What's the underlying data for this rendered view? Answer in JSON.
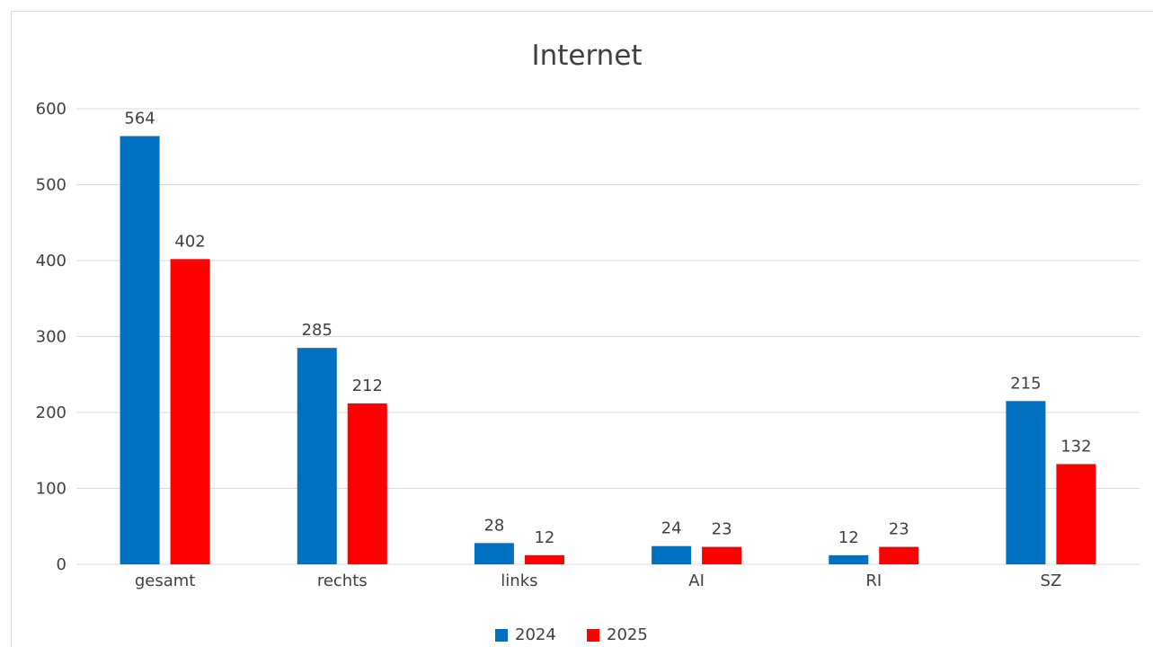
{
  "colors": {
    "series_2024": "#0070c0",
    "series_2025": "#ff0000",
    "text": "#404040",
    "grid": "#d9d9d9"
  },
  "chart_data": {
    "type": "bar",
    "title": "Internet",
    "xlabel": "",
    "ylabel": "",
    "categories": [
      "gesamt",
      "rechts",
      "links",
      "AI",
      "RI",
      "SZ"
    ],
    "series": [
      {
        "name": "2024",
        "values": [
          564,
          285,
          28,
          24,
          12,
          215
        ]
      },
      {
        "name": "2025",
        "values": [
          402,
          212,
          12,
          23,
          23,
          132
        ]
      }
    ],
    "ylim": [
      0,
      600
    ],
    "yticks": [
      0,
      100,
      200,
      300,
      400,
      500,
      600
    ],
    "grid": true,
    "legend": "bottom-center",
    "data_labels": true
  }
}
